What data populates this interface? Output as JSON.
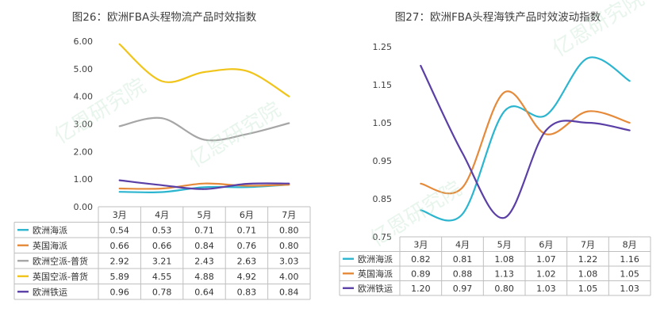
{
  "chart_data": [
    {
      "type": "line",
      "title": "图26：欧洲FBA头程物流产品时效指数",
      "categories": [
        "3月",
        "4月",
        "5月",
        "6月",
        "7月"
      ],
      "ylim": [
        0,
        6
      ],
      "yticks": [
        "0.00",
        "1.00",
        "2.00",
        "3.00",
        "4.00",
        "5.00",
        "6.00"
      ],
      "legend": "bottom-table",
      "series": [
        {
          "name": "欧洲海派",
          "color": "#2cb5cf",
          "values": [
            0.54,
            0.53,
            0.71,
            0.71,
            0.8
          ],
          "labels": [
            "0.54",
            "0.53",
            "0.71",
            "0.71",
            "0.80"
          ]
        },
        {
          "name": "英国海派",
          "color": "#e58a3a",
          "values": [
            0.66,
            0.66,
            0.84,
            0.76,
            0.8
          ],
          "labels": [
            "0.66",
            "0.66",
            "0.84",
            "0.76",
            "0.80"
          ]
        },
        {
          "name": "欧洲空派-普货",
          "color": "#a6a6a6",
          "values": [
            2.92,
            3.21,
            2.43,
            2.63,
            3.03
          ],
          "labels": [
            "2.92",
            "3.21",
            "2.43",
            "2.63",
            "3.03"
          ]
        },
        {
          "name": "英国空派-普货",
          "color": "#f0c419",
          "values": [
            5.89,
            4.55,
            4.88,
            4.92,
            4.0
          ],
          "labels": [
            "5.89",
            "4.55",
            "4.88",
            "4.92",
            "4.00"
          ]
        },
        {
          "name": "欧洲铁运",
          "color": "#5a3fa6",
          "values": [
            0.96,
            0.78,
            0.64,
            0.83,
            0.84
          ],
          "labels": [
            "0.96",
            "0.78",
            "0.64",
            "0.83",
            "0.84"
          ]
        }
      ]
    },
    {
      "type": "line",
      "title": "图27：欧洲FBA头程海铁产品时效波动指数",
      "categories": [
        "3月",
        "4月",
        "5月",
        "6月",
        "7月",
        "8月"
      ],
      "ylim": [
        0.75,
        1.25
      ],
      "yticks": [
        "0.75",
        "0.85",
        "0.95",
        "1.05",
        "1.15",
        "1.25"
      ],
      "legend": "bottom-table",
      "series": [
        {
          "name": "欧洲海派",
          "color": "#2cb5cf",
          "values": [
            0.82,
            0.81,
            1.08,
            1.07,
            1.22,
            1.16
          ],
          "labels": [
            "0.82",
            "0.81",
            "1.08",
            "1.07",
            "1.22",
            "1.16"
          ]
        },
        {
          "name": "英国海派",
          "color": "#e58a3a",
          "values": [
            0.89,
            0.88,
            1.13,
            1.02,
            1.08,
            1.05
          ],
          "labels": [
            "0.89",
            "0.88",
            "1.13",
            "1.02",
            "1.08",
            "1.05"
          ]
        },
        {
          "name": "欧洲铁运",
          "color": "#5a3fa6",
          "values": [
            1.2,
            0.97,
            0.8,
            1.03,
            1.05,
            1.03
          ],
          "labels": [
            "1.20",
            "0.97",
            "0.80",
            "1.03",
            "1.05",
            "1.03"
          ]
        }
      ]
    }
  ]
}
